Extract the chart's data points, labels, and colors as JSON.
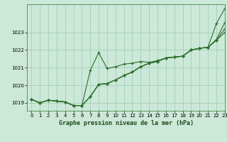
{
  "title": "Graphe pression niveau de la mer (hPa)",
  "bg_color": "#cce8d8",
  "grid_color": "#99ccb0",
  "line_color": "#2d6e2d",
  "xlim": [
    -0.5,
    23
  ],
  "ylim": [
    1018.55,
    1024.6
  ],
  "yticks": [
    1019,
    1020,
    1021,
    1022,
    1023
  ],
  "xticks": [
    0,
    1,
    2,
    3,
    4,
    5,
    6,
    7,
    8,
    9,
    10,
    11,
    12,
    13,
    14,
    15,
    16,
    17,
    18,
    19,
    20,
    21,
    22,
    23
  ],
  "series": [
    [
      1019.2,
      1019.0,
      1019.15,
      1019.1,
      1019.05,
      1018.85,
      1018.85,
      1020.85,
      1021.85,
      1020.95,
      1021.05,
      1021.2,
      1021.25,
      1021.35,
      1021.3,
      1021.4,
      1021.55,
      1021.6,
      1021.65,
      1022.0,
      1022.1,
      1022.15,
      1023.5,
      1024.35
    ],
    [
      1019.2,
      1019.0,
      1019.15,
      1019.1,
      1019.05,
      1018.85,
      1018.85,
      1019.35,
      1020.05,
      1020.1,
      1020.3,
      1020.55,
      1020.75,
      1021.05,
      1021.25,
      1021.35,
      1021.55,
      1021.6,
      1021.65,
      1022.0,
      1022.1,
      1022.15,
      1022.6,
      1023.55
    ],
    [
      1019.2,
      1019.0,
      1019.15,
      1019.1,
      1019.05,
      1018.85,
      1018.85,
      1019.35,
      1020.05,
      1020.1,
      1020.3,
      1020.55,
      1020.75,
      1021.05,
      1021.25,
      1021.35,
      1021.55,
      1021.6,
      1021.65,
      1022.0,
      1022.1,
      1022.15,
      1022.55,
      1023.2
    ],
    [
      1019.2,
      1019.0,
      1019.15,
      1019.1,
      1019.05,
      1018.85,
      1018.85,
      1019.35,
      1020.05,
      1020.1,
      1020.3,
      1020.55,
      1020.75,
      1021.05,
      1021.25,
      1021.35,
      1021.55,
      1021.6,
      1021.65,
      1022.0,
      1022.1,
      1022.15,
      1022.55,
      1023.0
    ]
  ]
}
